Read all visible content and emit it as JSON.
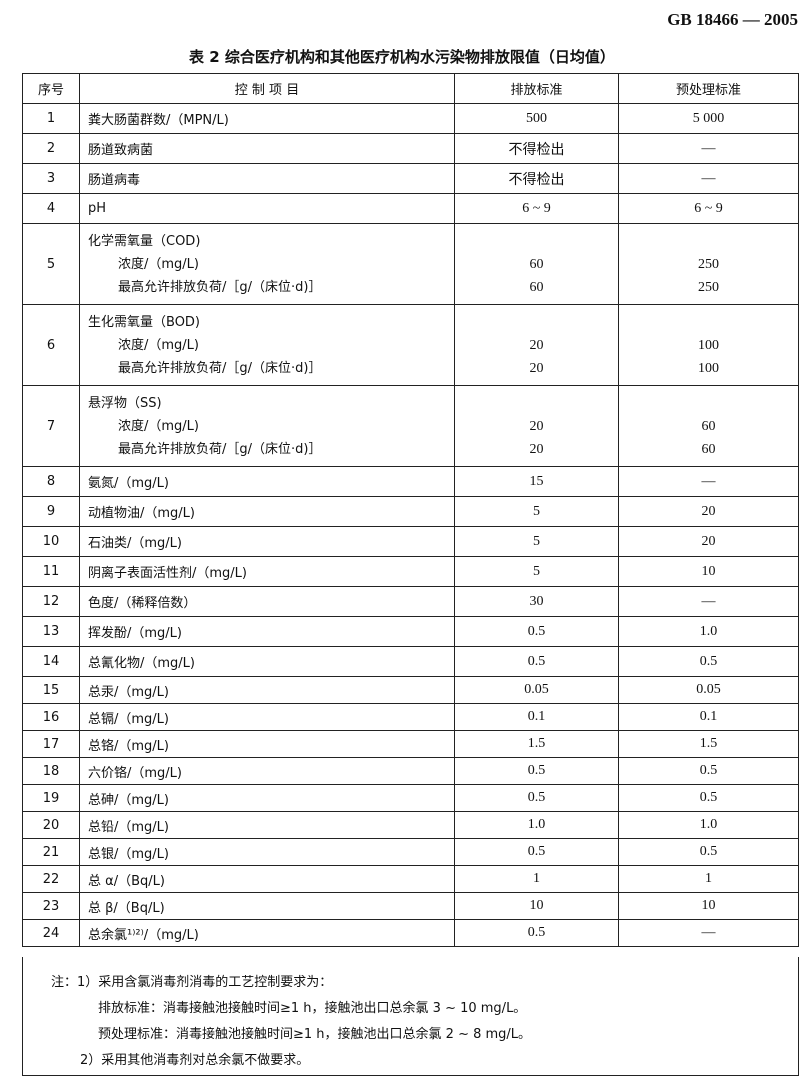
{
  "standard_code": "GB 18466 — 2005",
  "title": "表 2   综合医疗机构和其他医疗机构水污染物排放限值（日均值）",
  "headers": [
    "序号",
    "控 制 项 目",
    "排放标准",
    "预处理标准"
  ],
  "rows": [
    {
      "no": "1",
      "item": "粪大肠菌群数/（MPN/L)",
      "discharge": "500",
      "pretreat": "5 000"
    },
    {
      "no": "2",
      "item": "肠道致病菌",
      "discharge": "不得检出",
      "pretreat": "—"
    },
    {
      "no": "3",
      "item": "肠道病毒",
      "discharge": "不得检出",
      "pretreat": "—"
    },
    {
      "no": "4",
      "item": "pH",
      "discharge": "6 ~ 9",
      "pretreat": "6 ~ 9"
    }
  ],
  "multi_rows": [
    {
      "no": "5",
      "item": "化学需氧量（COD)",
      "sub": [
        {
          "item": "浓度/（mg/L)",
          "discharge": "60",
          "pretreat": "250"
        },
        {
          "item": "最高允许排放负荷/［g/（床位·d)］",
          "discharge": "60",
          "pretreat": "250"
        }
      ]
    },
    {
      "no": "6",
      "item": "生化需氧量（BOD)",
      "sub": [
        {
          "item": "浓度/（mg/L)",
          "discharge": "20",
          "pretreat": "100"
        },
        {
          "item": "最高允许排放负荷/［g/（床位·d)］",
          "discharge": "20",
          "pretreat": "100"
        }
      ]
    },
    {
      "no": "7",
      "item": "悬浮物（SS)",
      "sub": [
        {
          "item": "浓度/（mg/L)",
          "discharge": "20",
          "pretreat": "60"
        },
        {
          "item": "最高允许排放负荷/［g/（床位·d)］",
          "discharge": "20",
          "pretreat": "60"
        }
      ]
    }
  ],
  "rows2": [
    {
      "no": "8",
      "item": "氨氮/（mg/L)",
      "discharge": "15",
      "pretreat": "—"
    },
    {
      "no": "9",
      "item": "动植物油/（mg/L)",
      "discharge": "5",
      "pretreat": "20"
    },
    {
      "no": "10",
      "item": "石油类/（mg/L)",
      "discharge": "5",
      "pretreat": "20"
    },
    {
      "no": "11",
      "item": "阴离子表面活性剂/（mg/L)",
      "discharge": "5",
      "pretreat": "10"
    },
    {
      "no": "12",
      "item": "色度/（稀释倍数）",
      "discharge": "30",
      "pretreat": "—"
    },
    {
      "no": "13",
      "item": "挥发酚/（mg/L)",
      "discharge": "0.5",
      "pretreat": "1.0"
    },
    {
      "no": "14",
      "item": "总氰化物/（mg/L)",
      "discharge": "0.5",
      "pretreat": "0.5"
    },
    {
      "no": "15",
      "item": "总汞/（mg/L)",
      "discharge": "0.05",
      "pretreat": "0.05"
    },
    {
      "no": "16",
      "item": "总镉/（mg/L)",
      "discharge": "0.1",
      "pretreat": "0.1"
    },
    {
      "no": "17",
      "item": "总铬/（mg/L)",
      "discharge": "1.5",
      "pretreat": "1.5"
    },
    {
      "no": "18",
      "item": "六价铬/（mg/L)",
      "discharge": "0.5",
      "pretreat": "0.5"
    },
    {
      "no": "19",
      "item": "总砷/（mg/L)",
      "discharge": "0.5",
      "pretreat": "0.5"
    },
    {
      "no": "20",
      "item": "总铅/（mg/L)",
      "discharge": "1.0",
      "pretreat": "1.0"
    },
    {
      "no": "21",
      "item": "总银/（mg/L)",
      "discharge": "0.5",
      "pretreat": "0.5"
    },
    {
      "no": "22",
      "item": "总 α/（Bq/L)",
      "discharge": "1",
      "pretreat": "1"
    },
    {
      "no": "23",
      "item": "总 β/（Bq/L)",
      "discharge": "10",
      "pretreat": "10"
    },
    {
      "no": "24",
      "item": "总余氯¹⁾²⁾/（mg/L)",
      "discharge": "0.5",
      "pretreat": "—"
    }
  ],
  "notes": [
    "注：1）采用含氯消毒剂消毒的工艺控制要求为：",
    "排放标准：消毒接触池接触时间≥1 h，接触池出口总余氯 3 ~ 10 mg/L。",
    "预处理标准：消毒接触池接触时间≥1 h，接触池出口总余氯 2 ~ 8 mg/L。",
    "2）采用其他消毒剂对总余氯不做要求。"
  ]
}
